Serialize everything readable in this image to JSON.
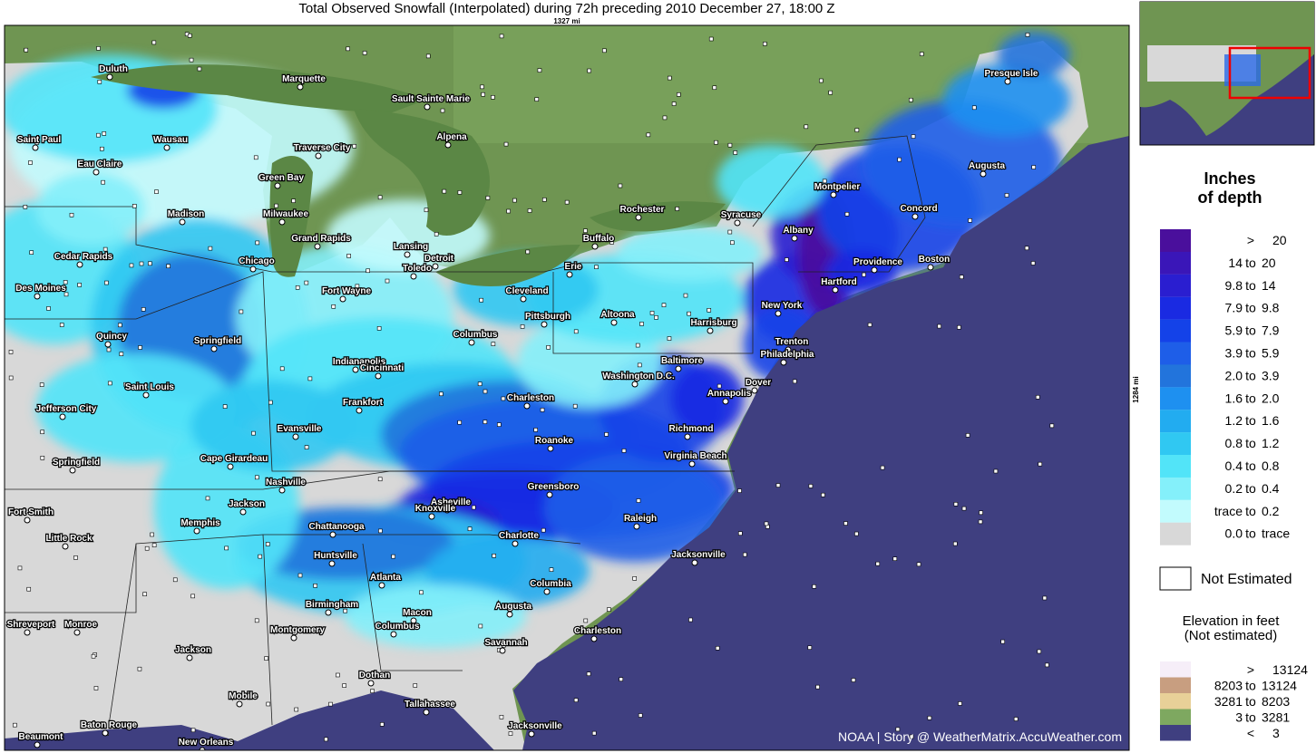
{
  "header": {
    "title": "Total Observed Snowfall (Interpolated) during 72h preceding 2010 December 27, 18:00 Z",
    "width_label": "1327 mi",
    "height_label": "1284 mi"
  },
  "credit": "NOAA | Story @ WeatherMatrix.AccuWeather.com",
  "cities": [
    "Duluth",
    "Marquette",
    "Sault Sainte Marie",
    "Saint Paul",
    "Wausau",
    "Alpena",
    "Traverse City",
    "Eau Claire",
    "Green Bay",
    "Madison",
    "Milwaukee",
    "Grand Rapids",
    "Lansing",
    "Detroit",
    "Toledo",
    "Cedar Rapids",
    "Chicago",
    "Des Moines",
    "Fort Wayne",
    "Cleveland",
    "Rochester",
    "Syracuse",
    "Buffalo",
    "Erie",
    "Albany",
    "Montpelier",
    "Concord",
    "Augusta",
    "Presque Isle",
    "Providence",
    "Boston",
    "Hartford",
    "New York",
    "Pittsburgh",
    "Altoona",
    "Harrisburg",
    "Columbus",
    "Quincy",
    "Springfield",
    "Indianapolis",
    "Cincinnati",
    "Trenton",
    "Philadelphia",
    "Baltimore",
    "Washington D.C.",
    "Saint Louis",
    "Dover",
    "Annapolis",
    "Frankfort",
    "Charleston",
    "Jefferson City",
    "Evansville",
    "Richmond",
    "Roanoke",
    "Virginia Beach",
    "Cape Girardeau",
    "Springfield",
    "Nashville",
    "Greensboro",
    "Asheville",
    "Knoxville",
    "Jackson",
    "Fort Smith",
    "Raleigh",
    "Memphis",
    "Chattanooga",
    "Charlotte",
    "Little Rock",
    "Huntsville",
    "Jacksonville",
    "Atlanta",
    "Columbia",
    "Birmingham",
    "Augusta",
    "Macon",
    "Shreveport",
    "Monroe",
    "Montgomery",
    "Columbus",
    "Charleston",
    "Jackson",
    "Savannah",
    "Dothan",
    "Tallahassee",
    "Mobile",
    "Baton Rouge",
    "Jacksonville",
    "Beaumont",
    "New Orleans"
  ],
  "legend": {
    "title": [
      "Inches",
      "of depth"
    ],
    "rows": [
      {
        "text": [
          ">",
          "20"
        ],
        "color": "#4a0f9c"
      },
      {
        "text": [
          "14",
          "to",
          "20"
        ],
        "color": "#3a16b8"
      },
      {
        "text": [
          "9.8",
          "to",
          "14"
        ],
        "color": "#2a1ed0"
      },
      {
        "text": [
          "7.9",
          "to",
          "9.8"
        ],
        "color": "#1a2ae2"
      },
      {
        "text": [
          "5.9",
          "to",
          "7.9"
        ],
        "color": "#1442e8"
      },
      {
        "text": [
          "3.9",
          "to",
          "5.9"
        ],
        "color": "#1e5ee8"
      },
      {
        "text": [
          "2.0",
          "to",
          "3.9"
        ],
        "color": "#2274dc"
      },
      {
        "text": [
          "1.6",
          "to",
          "2.0"
        ],
        "color": "#1e90f0"
      },
      {
        "text": [
          "1.2",
          "to",
          "1.6"
        ],
        "color": "#22acf0"
      },
      {
        "text": [
          "0.8",
          "to",
          "1.2"
        ],
        "color": "#30c8f2"
      },
      {
        "text": [
          "0.4",
          "to",
          "0.8"
        ],
        "color": "#52e4f8"
      },
      {
        "text": [
          "0.2",
          "to",
          "0.4"
        ],
        "color": "#84f0fa"
      },
      {
        "text": [
          "trace",
          "to",
          "0.2"
        ],
        "color": "#c2fbfd"
      },
      {
        "text": [
          "0.0",
          "to",
          "trace"
        ],
        "color": "#d8d8d8"
      }
    ],
    "not_estimated": "Not Estimated",
    "elevation_title": [
      "Elevation in feet",
      "(Not estimated)"
    ],
    "elevation_rows": [
      {
        "text": [
          ">",
          "13124"
        ],
        "color": "#f6eef8"
      },
      {
        "text": [
          "8203",
          "to",
          "13124"
        ],
        "color": "#c89e80"
      },
      {
        "text": [
          "3281",
          "to",
          "8203"
        ],
        "color": "#e8d098"
      },
      {
        "text": [
          "3",
          "to",
          "3281"
        ],
        "color": "#7ea860"
      },
      {
        "text": [
          "<",
          "3"
        ],
        "color": "#3f3f80"
      }
    ]
  }
}
